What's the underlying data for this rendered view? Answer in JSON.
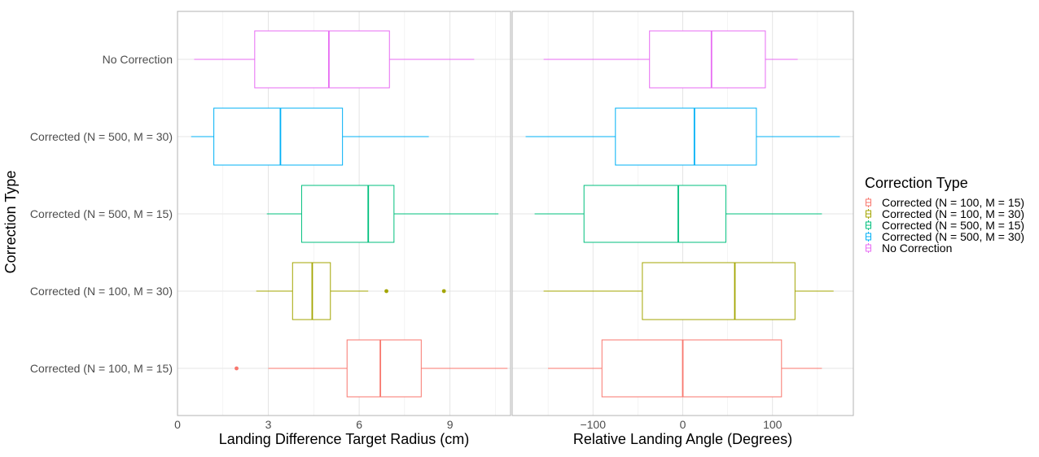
{
  "chart_data": {
    "type": "boxplot",
    "y_title": "Correction Type",
    "categories": [
      "Corrected (N = 100, M = 15)",
      "Corrected (N = 100, M = 30)",
      "Corrected (N = 500, M = 15)",
      "Corrected (N = 500, M = 30)",
      "No Correction"
    ],
    "colors": [
      "#F8766D",
      "#A3A500",
      "#00BF7D",
      "#00B0F6",
      "#E76BF3"
    ],
    "legend": {
      "title": "Correction Type",
      "placement": "right",
      "entries": [
        "Corrected (N = 100, M = 15)",
        "Corrected (N = 100, M = 30)",
        "Corrected (N = 500, M = 15)",
        "Corrected (N = 500, M = 30)",
        "No Correction"
      ]
    },
    "panels": [
      {
        "xlabel": "Landing Difference Target Radius (cm)",
        "xlim": [
          0,
          11
        ],
        "ticks": [
          0,
          3,
          6,
          9
        ],
        "tick_labels": [
          "0",
          "3",
          "6",
          "9"
        ],
        "boxes": [
          {
            "category": "Corrected (N = 100, M = 15)",
            "min": 3.0,
            "q1": 5.6,
            "median": 6.7,
            "q3": 8.05,
            "max": 10.9,
            "outliers": [
              1.95
            ]
          },
          {
            "category": "Corrected (N = 100, M = 30)",
            "min": 2.6,
            "q1": 3.8,
            "median": 4.45,
            "q3": 5.05,
            "max": 6.3,
            "outliers": [
              6.9,
              8.8
            ]
          },
          {
            "category": "Corrected (N = 500, M = 15)",
            "min": 2.95,
            "q1": 4.1,
            "median": 6.3,
            "q3": 7.15,
            "max": 10.6,
            "outliers": []
          },
          {
            "category": "Corrected (N = 500, M = 30)",
            "min": 0.45,
            "q1": 1.2,
            "median": 3.4,
            "q3": 5.45,
            "max": 8.3,
            "outliers": []
          },
          {
            "category": "No Correction",
            "min": 0.55,
            "q1": 2.55,
            "median": 5.0,
            "q3": 7.0,
            "max": 9.8,
            "outliers": []
          }
        ]
      },
      {
        "xlabel": "Relative Landing Angle (Degrees)",
        "xlim": [
          -190,
          190
        ],
        "ticks": [
          -100,
          0,
          100
        ],
        "tick_labels": [
          "−100",
          "0",
          "100"
        ],
        "boxes": [
          {
            "category": "Corrected (N = 100, M = 15)",
            "min": -150,
            "q1": -90,
            "median": 0,
            "q3": 110,
            "max": 155,
            "outliers": []
          },
          {
            "category": "Corrected (N = 100, M = 30)",
            "min": -155,
            "q1": -45,
            "median": 58,
            "q3": 125,
            "max": 168,
            "outliers": []
          },
          {
            "category": "Corrected (N = 500, M = 15)",
            "min": -165,
            "q1": -110,
            "median": -5,
            "q3": 48,
            "max": 155,
            "outliers": []
          },
          {
            "category": "Corrected (N = 500, M = 30)",
            "min": -175,
            "q1": -75,
            "median": 13,
            "q3": 82,
            "max": 175,
            "outliers": []
          },
          {
            "category": "No Correction",
            "min": -155,
            "q1": -37,
            "median": 32,
            "q3": 92,
            "max": 128,
            "outliers": []
          }
        ]
      }
    ]
  }
}
